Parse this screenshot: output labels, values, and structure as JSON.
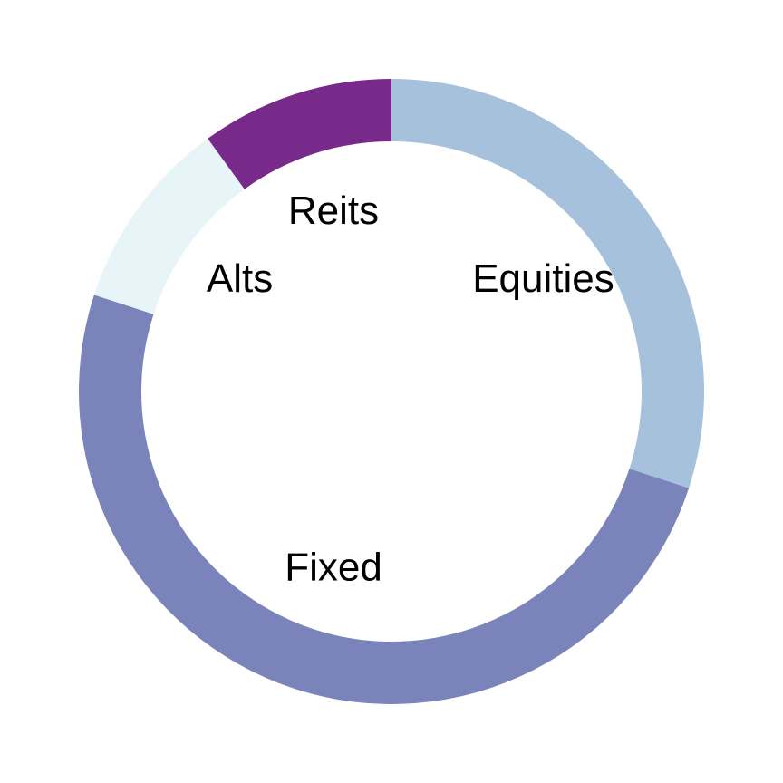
{
  "chart_data": {
    "type": "pie",
    "variant": "donut",
    "start": "12 o'clock",
    "direction": "clockwise",
    "categories": [
      "Equities",
      "Fixed",
      "Alts",
      "Reits"
    ],
    "values": [
      30,
      50,
      10,
      10
    ],
    "colors": [
      "#a6c1dc",
      "#7a84ba",
      "#e8f5f8",
      "#772a89"
    ],
    "legend": "none",
    "title": ""
  }
}
